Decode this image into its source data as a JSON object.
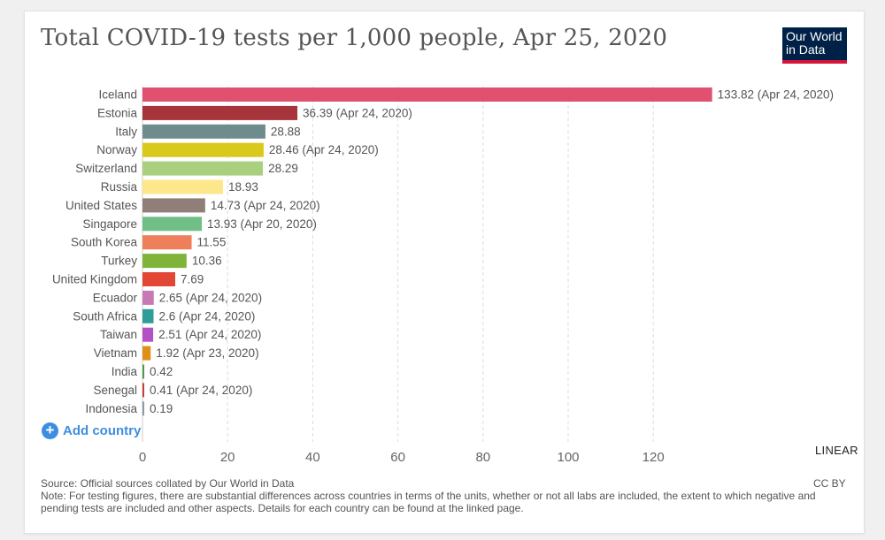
{
  "title": "Total COVID-19 tests per 1,000 people, Apr 25, 2020",
  "logo": {
    "line1": "Our World",
    "line2": "in Data"
  },
  "add_country_label": "Add country",
  "scale_toggle_label": "LINEAR",
  "source": "Source: Official sources collated by Our World in Data",
  "license": "CC BY",
  "note": "Note: For testing figures, there are substantial differences across countries in terms of the units, whether or not all labs are included, the extent to which negative and pending tests are included and other aspects. Details for each country can be found at the linked page.",
  "chart_data": {
    "type": "bar",
    "orientation": "horizontal",
    "xlim": [
      0,
      140
    ],
    "x_ticks": [
      0,
      20,
      40,
      60,
      80,
      100,
      120
    ],
    "grid": true,
    "categories": [
      "Iceland",
      "Estonia",
      "Italy",
      "Norway",
      "Switzerland",
      "Russia",
      "United States",
      "Singapore",
      "South Korea",
      "Turkey",
      "United Kingdom",
      "Ecuador",
      "South Africa",
      "Taiwan",
      "Vietnam",
      "India",
      "Senegal",
      "Indonesia"
    ],
    "values": [
      133.82,
      36.39,
      28.88,
      28.46,
      28.29,
      18.93,
      14.73,
      13.93,
      11.55,
      10.36,
      7.69,
      2.65,
      2.6,
      2.51,
      1.92,
      0.42,
      0.41,
      0.19
    ],
    "value_labels": [
      "133.82 (Apr 24, 2020)",
      "36.39 (Apr 24, 2020)",
      "28.88",
      "28.46 (Apr 24, 2020)",
      "28.29",
      "18.93",
      "14.73 (Apr 24, 2020)",
      "13.93 (Apr 20, 2020)",
      "11.55",
      "10.36",
      "7.69",
      "2.65 (Apr 24, 2020)",
      "2.6 (Apr 24, 2020)",
      "2.51 (Apr 24, 2020)",
      "1.92 (Apr 23, 2020)",
      "0.42",
      "0.41 (Apr 24, 2020)",
      "0.19"
    ],
    "colors": [
      "#e0506f",
      "#a6343b",
      "#6e8c8c",
      "#d9c91a",
      "#a9cf7f",
      "#fce78a",
      "#8f7f78",
      "#6fbf87",
      "#ee7f5a",
      "#7fb33a",
      "#e24735",
      "#c779b5",
      "#2f9e98",
      "#b451c4",
      "#df8f16",
      "#4e9c3f",
      "#c83c3c",
      "#8a9aac"
    ]
  }
}
